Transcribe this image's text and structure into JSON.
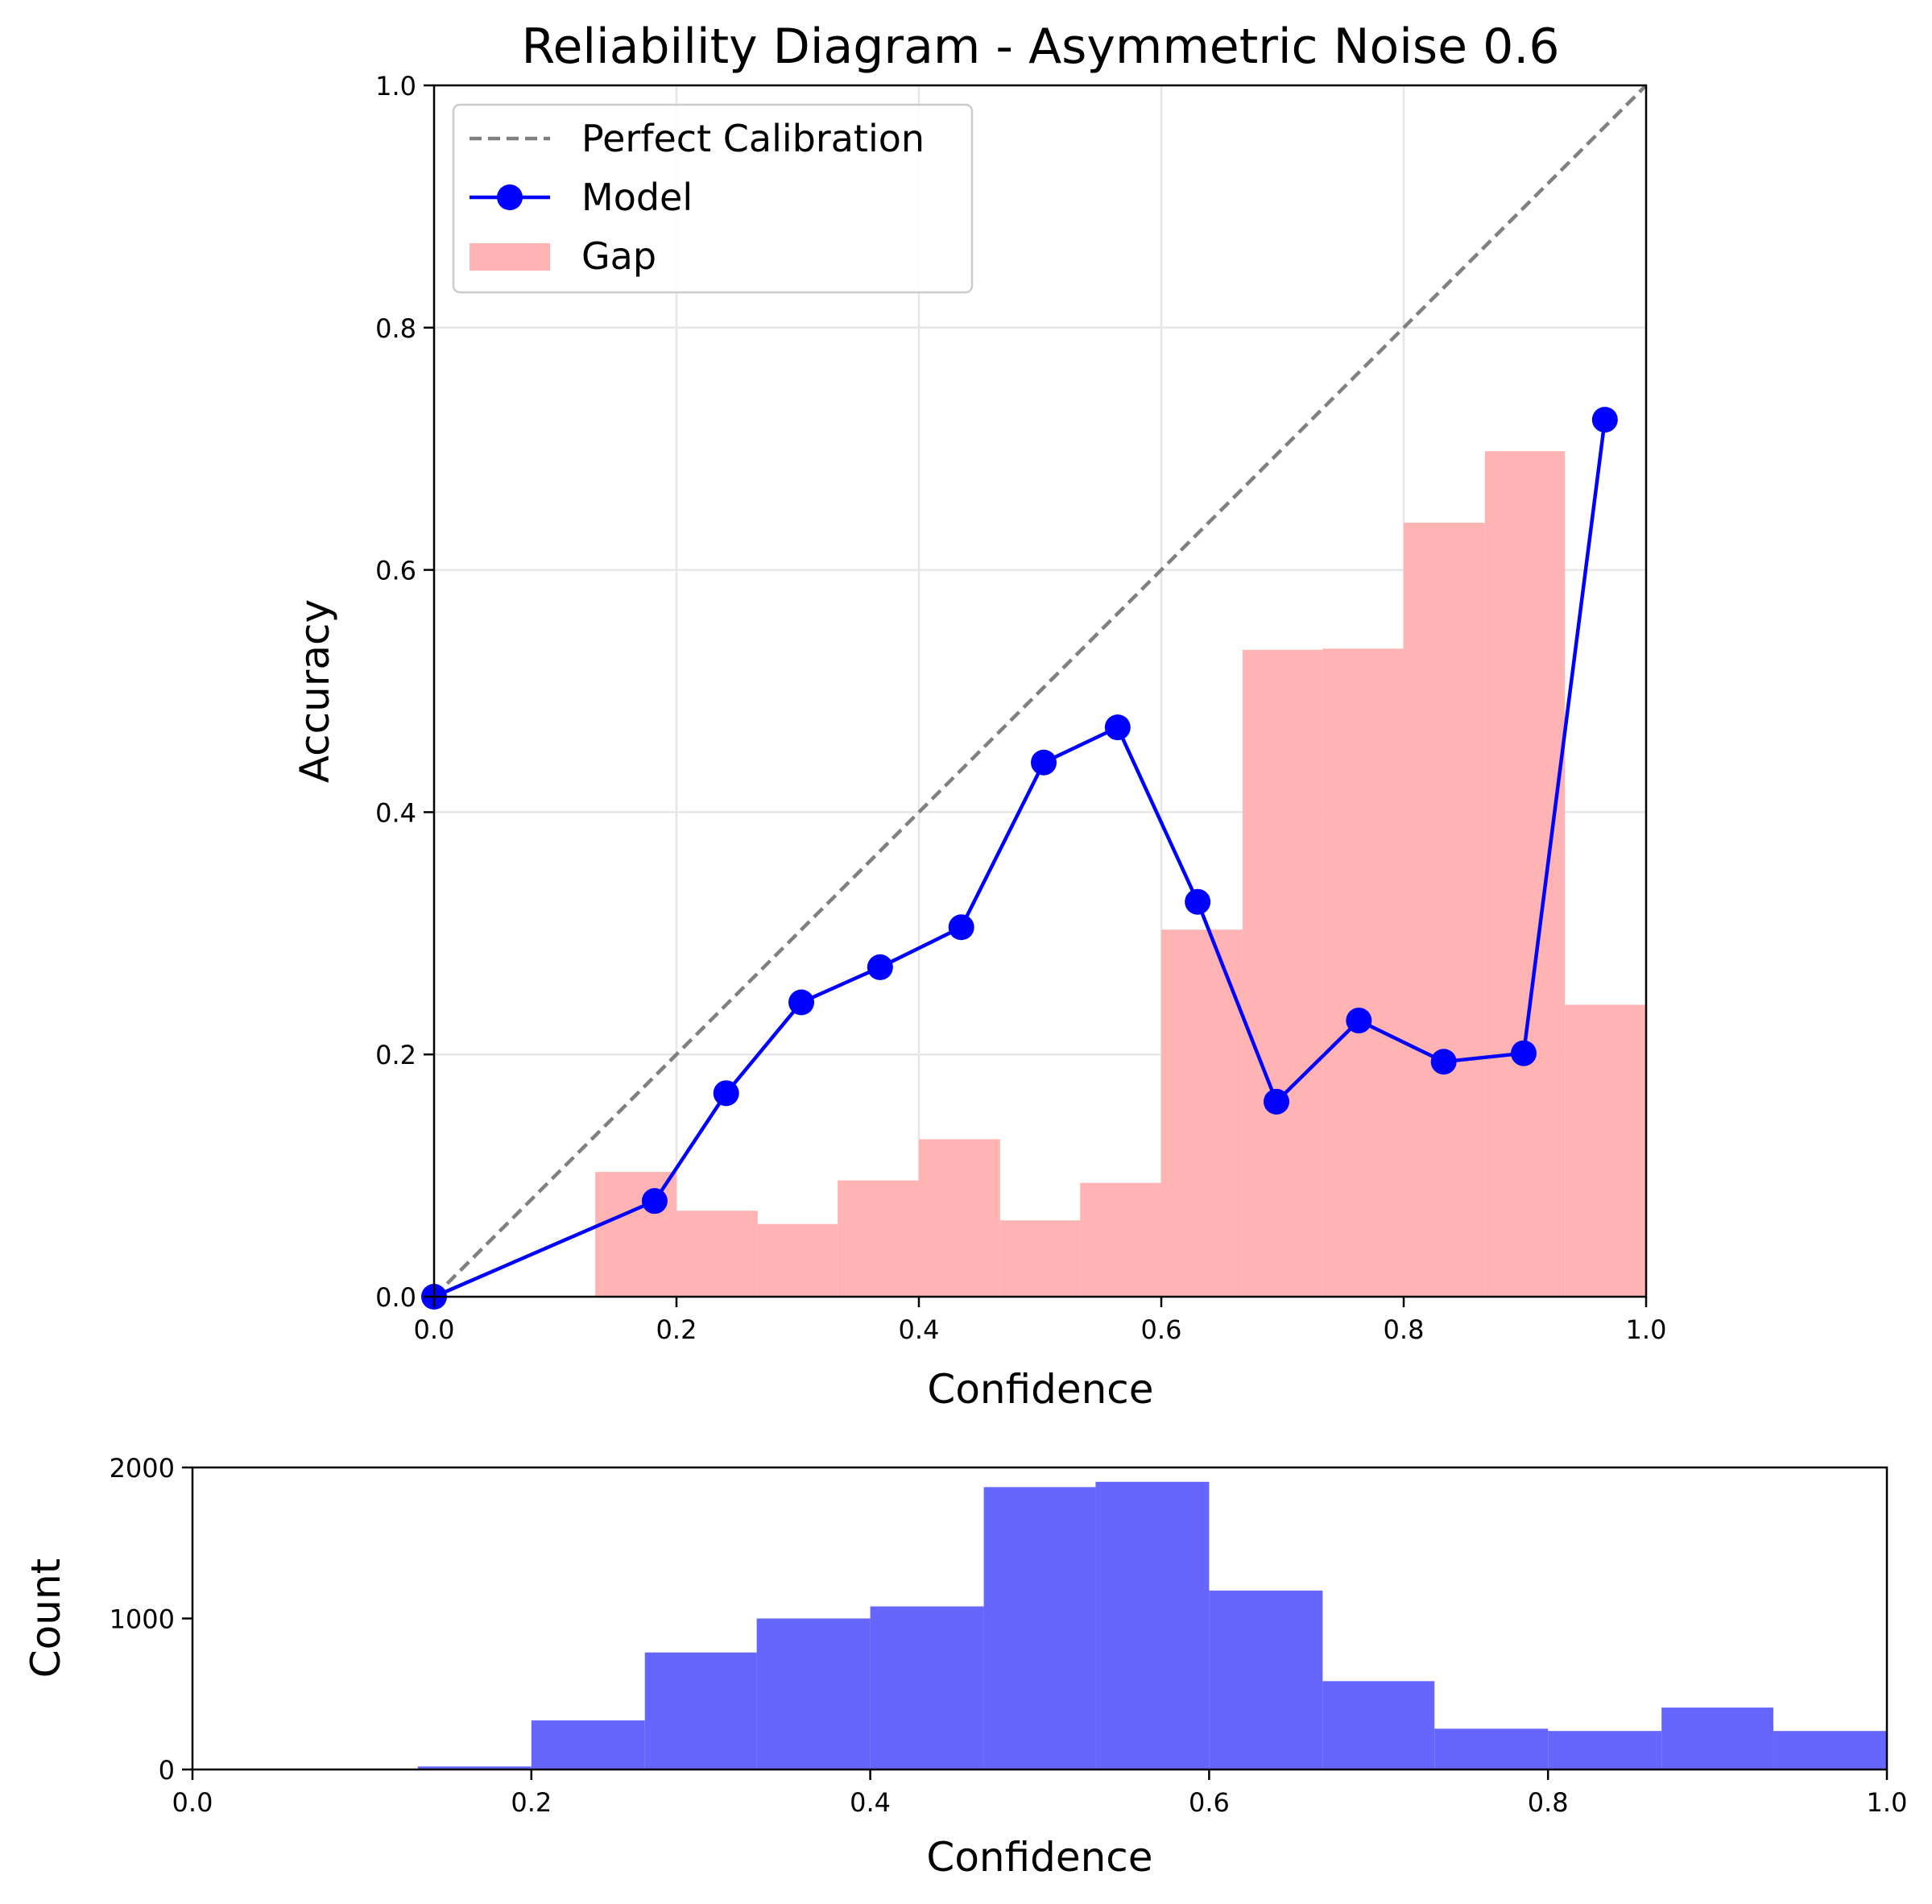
{
  "chart_data": [
    {
      "type": "line",
      "title": "Reliability Diagram - Asymmetric Noise 0.6",
      "xlabel": "Confidence",
      "ylabel": "Accuracy",
      "xlim": [
        0,
        1
      ],
      "ylim": [
        0,
        1
      ],
      "grid": true,
      "legend_position": "top-left",
      "x_ticks": [
        "0.0",
        "0.2",
        "0.4",
        "0.6",
        "0.8",
        "1.0"
      ],
      "y_ticks": [
        "0.0",
        "0.2",
        "0.4",
        "0.6",
        "0.8",
        "1.0"
      ],
      "series": [
        {
          "name": "Perfect Calibration",
          "style": "dashed",
          "color": "#808080",
          "x": [
            0,
            1
          ],
          "y": [
            0,
            1
          ]
        },
        {
          "name": "Model",
          "style": "line-marker",
          "color": "#0000ff",
          "x": [
            0.0,
            0.182,
            0.241,
            0.303,
            0.368,
            0.435,
            0.503,
            0.564,
            0.63,
            0.695,
            0.763,
            0.833,
            0.899,
            0.966
          ],
          "y": [
            0.0,
            0.079,
            0.168,
            0.243,
            0.272,
            0.305,
            0.441,
            0.47,
            0.326,
            0.161,
            0.228,
            0.194,
            0.201,
            0.724
          ]
        },
        {
          "name": "Gap",
          "style": "bar",
          "color": "#ffb3b3",
          "bin_edges": [
            0.133,
            0.2,
            0.267,
            0.333,
            0.4,
            0.467,
            0.533,
            0.6,
            0.667,
            0.733,
            0.8,
            0.867,
            0.933,
            1.0
          ],
          "values": [
            0.103,
            0.071,
            0.06,
            0.096,
            0.13,
            0.063,
            0.094,
            0.303,
            0.534,
            0.535,
            0.639,
            0.698,
            0.241
          ]
        }
      ]
    },
    {
      "type": "bar",
      "title": "",
      "xlabel": "Confidence",
      "ylabel": "Count",
      "xlim": [
        0,
        1
      ],
      "ylim": [
        0,
        2000
      ],
      "grid": false,
      "color": "#6666ff",
      "x_ticks": [
        "0.0",
        "0.2",
        "0.4",
        "0.6",
        "0.8",
        "1.0"
      ],
      "y_ticks": [
        "0",
        "1000",
        "2000"
      ],
      "bin_edges": [
        0.133,
        0.2,
        0.267,
        0.333,
        0.4,
        0.467,
        0.533,
        0.6,
        0.667,
        0.733,
        0.8,
        0.867,
        0.933,
        1.0
      ],
      "values": [
        20,
        325,
        775,
        1000,
        1080,
        1870,
        1905,
        1185,
        585,
        270,
        255,
        410,
        255
      ]
    }
  ]
}
